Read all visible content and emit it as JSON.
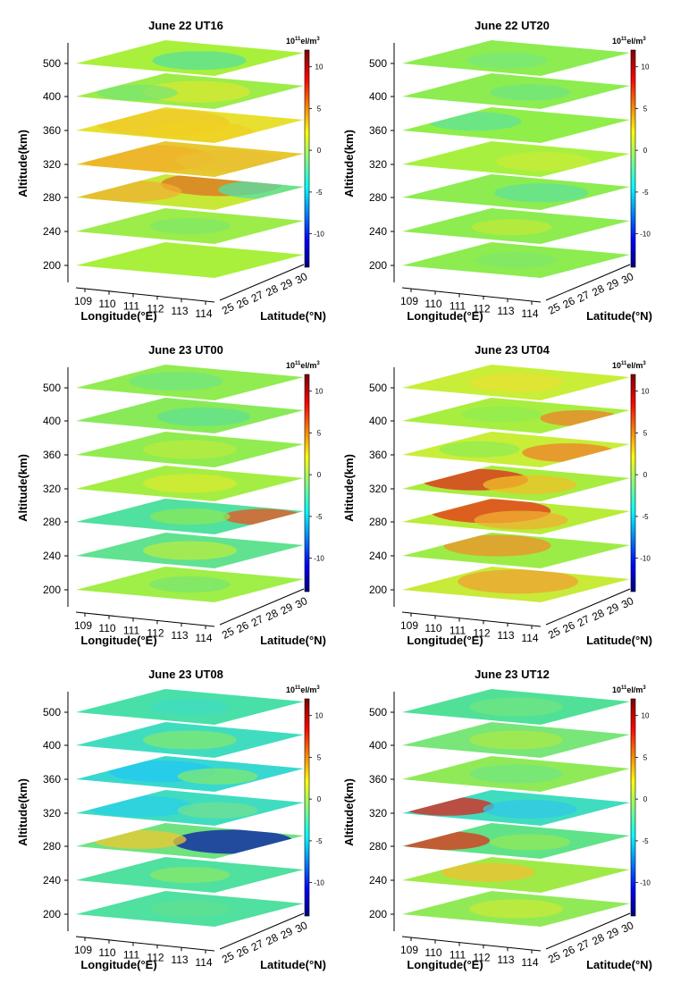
{
  "figure": {
    "colorbar": {
      "unit_base": "10",
      "unit_exp": "11",
      "unit_rest": "el/m",
      "unit_sup": "3",
      "ticks": [
        10,
        5,
        0,
        -5,
        -10
      ],
      "range": [
        -14,
        12
      ],
      "colormap": [
        "#00007f",
        "#0000ff",
        "#00ffff",
        "#ffff00",
        "#ff0000",
        "#7f0000"
      ]
    }
  },
  "chart_data": [
    {
      "type": "heatmap",
      "title": "June 22 UT16",
      "ylabel": "Altitude(km)",
      "xlabel": "Longitude(°E)",
      "zlabel": "Latitude(°N)",
      "altitudes": [
        "500",
        "400",
        "360",
        "320",
        "280",
        "240",
        "200"
      ],
      "longitudes": [
        "109",
        "110",
        "111",
        "112",
        "113",
        "114"
      ],
      "latitudes": [
        "25",
        "26",
        "27",
        "28",
        "29",
        "30"
      ],
      "base_colors": [
        "#a8f03c",
        "#9cec4a",
        "#e8e030",
        "#e8c830",
        "#c8e838",
        "#9cec4a",
        "#a8f03c"
      ]
    },
    {
      "type": "heatmap",
      "title": "June 22 UT20",
      "ylabel": "Altitude(km)",
      "xlabel": "Longitude(°E)",
      "zlabel": "Latitude(°N)",
      "altitudes": [
        "500",
        "400",
        "360",
        "320",
        "280",
        "240",
        "200"
      ],
      "longitudes": [
        "109",
        "110",
        "111",
        "112",
        "113",
        "114"
      ],
      "latitudes": [
        "25",
        "26",
        "27",
        "28",
        "29",
        "30"
      ],
      "base_colors": [
        "#8cec50",
        "#8cec50",
        "#90ee48",
        "#a8f040",
        "#8cec50",
        "#8cec50",
        "#8cec50"
      ]
    },
    {
      "type": "heatmap",
      "title": "June 23 UT00",
      "ylabel": "Altitude(km)",
      "xlabel": "Longitude(°E)",
      "zlabel": "Latitude(°N)",
      "altitudes": [
        "500",
        "400",
        "360",
        "320",
        "280",
        "240",
        "200"
      ],
      "longitudes": [
        "109",
        "110",
        "111",
        "112",
        "113",
        "114"
      ],
      "latitudes": [
        "25",
        "26",
        "27",
        "28",
        "29",
        "30"
      ],
      "base_colors": [
        "#90ec50",
        "#88ea58",
        "#90ec50",
        "#a4ee44",
        "#50e0a0",
        "#60e290",
        "#a0ee48"
      ]
    },
    {
      "type": "heatmap",
      "title": "June 23 UT04",
      "ylabel": "Altitude(km)",
      "xlabel": "Longitude(°E)",
      "zlabel": "Latitude(°N)",
      "altitudes": [
        "500",
        "400",
        "360",
        "320",
        "280",
        "240",
        "200"
      ],
      "longitudes": [
        "109",
        "110",
        "111",
        "112",
        "113",
        "114"
      ],
      "latitudes": [
        "25",
        "26",
        "27",
        "28",
        "29",
        "30"
      ],
      "base_colors": [
        "#c8ee38",
        "#a8ee40",
        "#c8ee38",
        "#a8ec40",
        "#b8ec38",
        "#9cec48",
        "#c8ea38"
      ]
    },
    {
      "type": "heatmap",
      "title": "June 23 UT08",
      "ylabel": "Altitude(km)",
      "xlabel": "Longitude(°E)",
      "zlabel": "Latitude(°N)",
      "altitudes": [
        "500",
        "400",
        "360",
        "320",
        "280",
        "240",
        "200"
      ],
      "longitudes": [
        "109",
        "110",
        "111",
        "112",
        "113",
        "114"
      ],
      "latitudes": [
        "25",
        "26",
        "27",
        "28",
        "29",
        "30"
      ],
      "base_colors": [
        "#48e0a8",
        "#40dcc0",
        "#38d8d0",
        "#40dcc0",
        "#70e280",
        "#50e0a0",
        "#50e0a0"
      ]
    },
    {
      "type": "heatmap",
      "title": "June 23 UT12",
      "ylabel": "Altitude(km)",
      "xlabel": "Longitude(°E)",
      "zlabel": "Latitude(°N)",
      "altitudes": [
        "500",
        "400",
        "360",
        "320",
        "280",
        "240",
        "200"
      ],
      "longitudes": [
        "109",
        "110",
        "111",
        "112",
        "113",
        "114"
      ],
      "latitudes": [
        "25",
        "26",
        "27",
        "28",
        "29",
        "30"
      ],
      "base_colors": [
        "#50e098",
        "#78e678",
        "#90ea58",
        "#40dcc0",
        "#60e288",
        "#a0ea48",
        "#90ea58"
      ]
    }
  ]
}
